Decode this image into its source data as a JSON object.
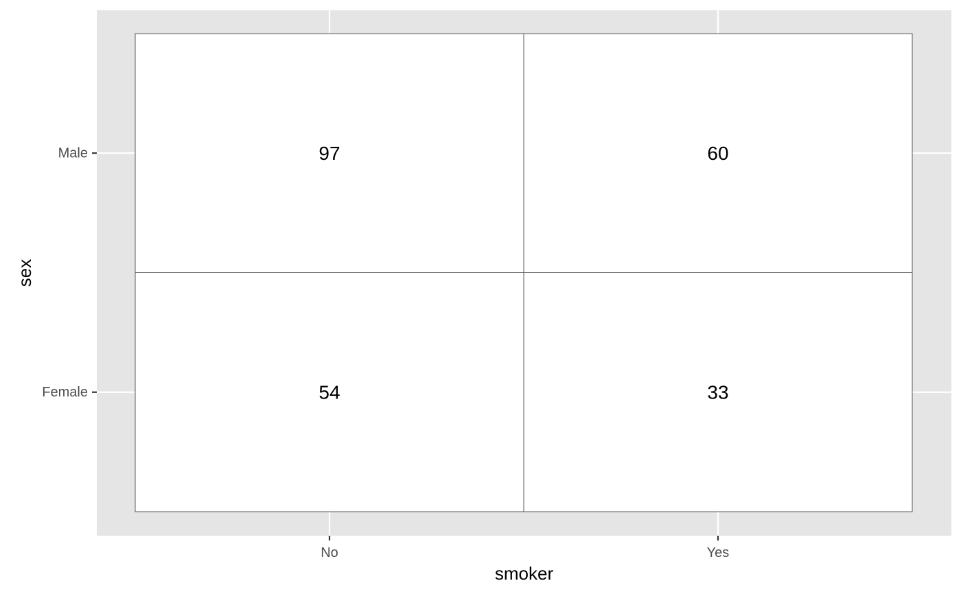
{
  "chart_data": {
    "type": "table",
    "xlabel": "smoker",
    "ylabel": "sex",
    "x_categories": [
      "No",
      "Yes"
    ],
    "y_categories": [
      "Male",
      "Female"
    ],
    "cells": [
      {
        "x": "No",
        "y": "Male",
        "value": 97
      },
      {
        "x": "Yes",
        "y": "Male",
        "value": 60
      },
      {
        "x": "No",
        "y": "Female",
        "value": 54
      },
      {
        "x": "Yes",
        "y": "Female",
        "value": 33
      }
    ],
    "grid": true,
    "legend": "none",
    "colors": {
      "panel_background": "#e5e5e5",
      "grid": "#ffffff",
      "tile_fill": "#ffffff",
      "tile_border": "#5a5a5a",
      "tick_label": "#4d4d4d",
      "text": "#000000"
    }
  }
}
